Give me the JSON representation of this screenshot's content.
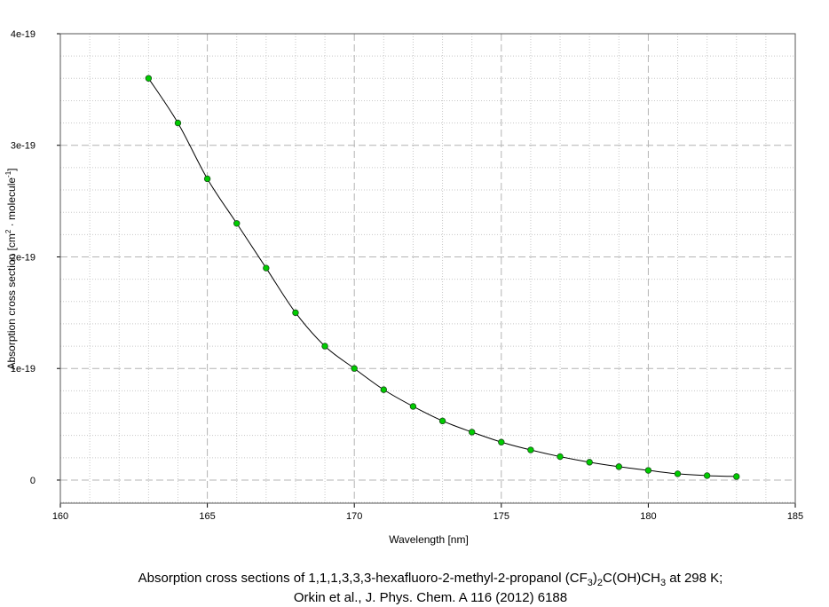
{
  "chart_data": {
    "type": "line",
    "title": {
      "line1": [
        "Absorption cross sections of 1,1,1,3,3,3-hexafluoro-2-methyl-2-propanol (CF",
        "3",
        ")",
        "2",
        "C(OH)CH",
        "3",
        " at 298 K;"
      ],
      "line2": "Orkin et al., J. Phys. Chem. A 116 (2012) 6188"
    },
    "x_label": "Wavelength [nm]",
    "y_label": [
      "Absorption cross section [cm",
      "2",
      " · molecule",
      "-1",
      "]"
    ],
    "x": [
      163,
      164,
      165,
      166,
      167,
      168,
      169,
      170,
      171,
      172,
      173,
      174,
      175,
      176,
      177,
      178,
      179,
      180,
      181,
      182,
      183
    ],
    "series": [
      {
        "color": "#00cc00",
        "line_color": "#000000",
        "values": [
          3.6e-19,
          3.2e-19,
          2.7e-19,
          2.3e-19,
          1.9e-19,
          1.5e-19,
          1.2e-19,
          1e-19,
          8.1e-20,
          6.6e-20,
          5.3e-20,
          4.3e-20,
          3.4e-20,
          2.7e-20,
          2.1e-20,
          1.6e-20,
          1.2e-20,
          8.7e-21,
          5.6e-21,
          4e-21,
          3.2e-21
        ]
      }
    ],
    "xlim": [
      160,
      185
    ],
    "xticks": [
      160,
      165,
      170,
      175,
      180,
      185
    ],
    "ylim": [
      -2.07e-20,
      4e-19
    ],
    "yticks": [
      0,
      1e-19,
      2e-19,
      3e-19,
      4e-19
    ],
    "grid": true
  }
}
